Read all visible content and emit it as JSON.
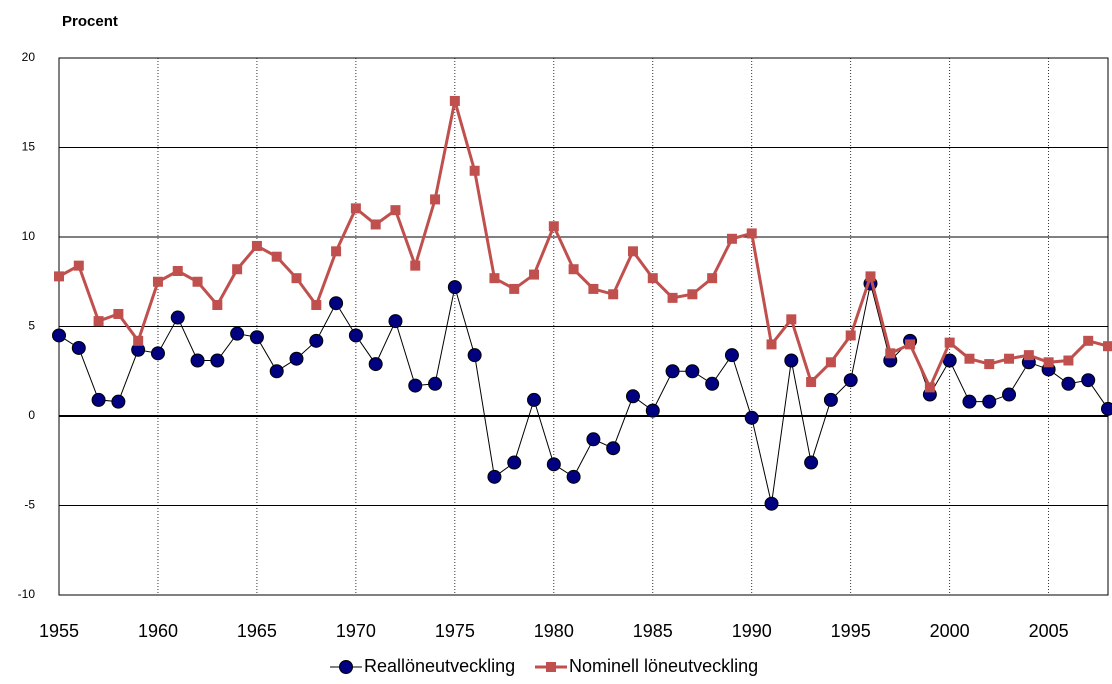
{
  "chart_data": {
    "type": "line",
    "title": "Procent",
    "x": [
      1955,
      1956,
      1957,
      1958,
      1959,
      1960,
      1961,
      1962,
      1963,
      1964,
      1965,
      1966,
      1967,
      1968,
      1969,
      1970,
      1971,
      1972,
      1973,
      1974,
      1975,
      1976,
      1977,
      1978,
      1979,
      1980,
      1981,
      1982,
      1983,
      1984,
      1985,
      1986,
      1987,
      1988,
      1989,
      1990,
      1991,
      1992,
      1993,
      1994,
      1995,
      1996,
      1997,
      1998,
      1999,
      2000,
      2001,
      2002,
      2003,
      2004,
      2005,
      2006,
      2007,
      2008
    ],
    "series": [
      {
        "name": "Reallöneutveckling",
        "color": "#000080",
        "line_color": "#000000",
        "values": [
          4.5,
          3.8,
          0.9,
          0.8,
          3.7,
          3.5,
          5.5,
          3.1,
          3.1,
          4.6,
          4.4,
          2.5,
          3.2,
          4.2,
          6.3,
          4.5,
          2.9,
          5.3,
          1.7,
          1.8,
          7.2,
          3.4,
          -3.4,
          -2.6,
          0.9,
          -2.7,
          -3.4,
          -1.3,
          -1.8,
          1.1,
          0.3,
          2.5,
          2.5,
          1.8,
          3.4,
          -0.1,
          -4.9,
          3.1,
          -2.6,
          0.9,
          2.0,
          7.4,
          3.1,
          4.2,
          1.2,
          3.1,
          0.8,
          0.8,
          1.2,
          3.0,
          2.6,
          1.8,
          2.0,
          0.4
        ]
      },
      {
        "name": "Nominell löneutveckling",
        "color": "#c0504d",
        "line_color": "#c0504d",
        "values": [
          7.8,
          8.4,
          5.3,
          5.7,
          4.2,
          7.5,
          8.1,
          7.5,
          6.2,
          8.2,
          9.5,
          8.9,
          7.7,
          6.2,
          9.2,
          11.6,
          10.7,
          11.5,
          8.4,
          12.1,
          17.6,
          13.7,
          7.7,
          7.1,
          7.9,
          10.6,
          8.2,
          7.1,
          6.8,
          9.2,
          7.7,
          6.6,
          6.8,
          7.7,
          9.9,
          10.2,
          4.0,
          5.4,
          1.9,
          3.0,
          4.5,
          7.8,
          3.5,
          4.0,
          1.6,
          4.1,
          3.2,
          2.9,
          3.2,
          3.4,
          3.0,
          3.1,
          4.2,
          3.9
        ]
      }
    ],
    "xlim": [
      1955,
      2008
    ],
    "xticks": [
      1955,
      1960,
      1965,
      1970,
      1975,
      1980,
      1985,
      1990,
      1995,
      2000,
      2005
    ],
    "ylim": [
      -10,
      20
    ],
    "yticks": [
      -10,
      -5,
      0,
      5,
      10,
      15,
      20
    ],
    "grid": true,
    "legend": "bottom"
  }
}
